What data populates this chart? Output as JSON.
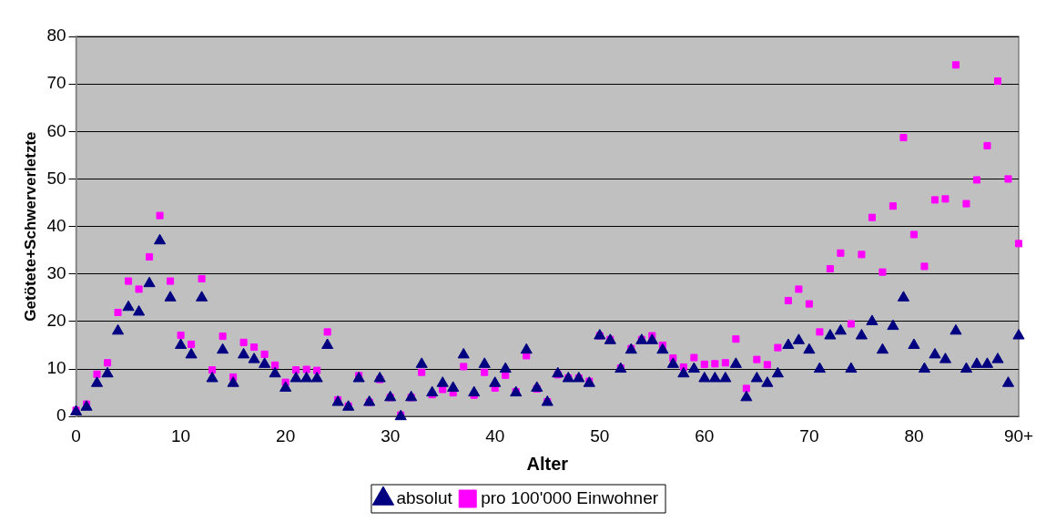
{
  "chart_data": {
    "type": "scatter",
    "xlabel": "Alter",
    "ylabel": "Getötete+Schwerverletzte",
    "x": [
      0,
      1,
      2,
      3,
      4,
      5,
      6,
      7,
      8,
      9,
      10,
      11,
      12,
      13,
      14,
      15,
      16,
      17,
      18,
      19,
      20,
      21,
      22,
      23,
      24,
      25,
      26,
      27,
      28,
      29,
      30,
      31,
      32,
      33,
      34,
      35,
      36,
      37,
      38,
      39,
      40,
      41,
      42,
      43,
      44,
      45,
      46,
      47,
      48,
      49,
      50,
      51,
      52,
      53,
      54,
      55,
      56,
      57,
      58,
      59,
      60,
      61,
      62,
      63,
      64,
      65,
      66,
      67,
      68,
      69,
      70,
      71,
      72,
      73,
      74,
      75,
      76,
      77,
      78,
      79,
      80,
      81,
      82,
      83,
      84,
      85,
      86,
      87,
      88,
      89,
      90
    ],
    "series": [
      {
        "name": "absolut",
        "color": "#000080",
        "marker": "triangle",
        "values": [
          1,
          2,
          7,
          9,
          18,
          23,
          22,
          28,
          37,
          25,
          15,
          13,
          25,
          8,
          14,
          7,
          13,
          12,
          11,
          9,
          6,
          8,
          8,
          8,
          15,
          3,
          2,
          8,
          3,
          8,
          4,
          0,
          4,
          11,
          5,
          7,
          6,
          13,
          5,
          11,
          7,
          10,
          5,
          14,
          6,
          3,
          9,
          8,
          8,
          7,
          17,
          16,
          10,
          14,
          16,
          16,
          14,
          11,
          9,
          10,
          8,
          8,
          8,
          11,
          4,
          8,
          7,
          9,
          15,
          16,
          14,
          10,
          17,
          18,
          10,
          17,
          20,
          14,
          19,
          25,
          15,
          10,
          13,
          12,
          18,
          10,
          11,
          11,
          12,
          7,
          17
        ]
      },
      {
        "name": "pro 100'000 Einwohner",
        "color": "#ff00ff",
        "marker": "square",
        "values": [
          1.3,
          2.6,
          8.9,
          11.3,
          21.9,
          28.5,
          26.8,
          33.6,
          42.3,
          28.5,
          17.1,
          15.2,
          29,
          9.8,
          16.9,
          8.3,
          15.6,
          14.6,
          13.1,
          10.8,
          7.2,
          9.8,
          9.9,
          9.7,
          17.8,
          3.5,
          2.2,
          8.6,
          3,
          7.8,
          4,
          0.3,
          4,
          9.3,
          4.6,
          5.7,
          5,
          10.5,
          4.5,
          9.3,
          6,
          8.7,
          5.2,
          12.8,
          5.8,
          3.1,
          8.8,
          8.1,
          8.1,
          7.4,
          17,
          16.2,
          10.2,
          14.3,
          16.2,
          17,
          15,
          12.3,
          10.4,
          12.4,
          11,
          11.1,
          11.3,
          16.3,
          5.9,
          12,
          10.9,
          14.5,
          24.4,
          26.8,
          23.7,
          17.8,
          31.1,
          34.4,
          19.5,
          34.1,
          41.9,
          30.4,
          44.3,
          58.7,
          38.3,
          31.6,
          45.6,
          45.8,
          74,
          44.8,
          49.8,
          57,
          70.6,
          50,
          36.4
        ]
      }
    ],
    "xlim": [
      0,
      90
    ],
    "xticks": [
      0,
      10,
      20,
      30,
      40,
      50,
      60,
      70,
      80,
      {
        "value": 90,
        "label": "90+"
      }
    ],
    "ylim": [
      0,
      80
    ],
    "yticks": [
      0,
      10,
      20,
      30,
      40,
      50,
      60,
      70,
      80
    ],
    "grid": "y",
    "legend": "bottom"
  }
}
